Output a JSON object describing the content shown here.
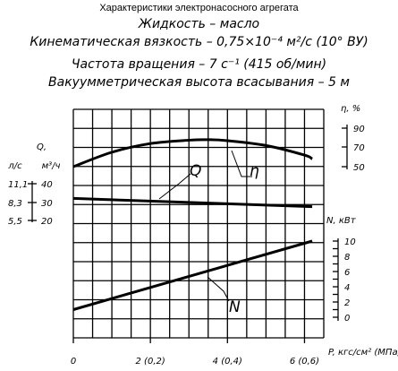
{
  "header": {
    "caption": "Характеристики электронасосного агрегата",
    "liquid": "Жидкость – масло",
    "viscosity": "Кинематическая вязкость – 0,75×10⁻⁴ м²/с (10° ВУ)",
    "speed": "Частота вращения – 7 с⁻¹ (415 об/мин)",
    "suction": "Вакуумметрическая высота всасывания – 5 м"
  },
  "chart_data": {
    "type": "line",
    "grid": true,
    "x_axis": {
      "label": "P, кгс/см² (МПа)",
      "range": [
        0,
        6.5
      ],
      "ticks": [
        {
          "value": 0,
          "label": "0"
        },
        {
          "value": 2,
          "label": "2 (0,2)"
        },
        {
          "value": 4,
          "label": "4 (0,4)"
        },
        {
          "value": 6,
          "label": "6 (0,6)"
        }
      ]
    },
    "y_axes": {
      "eta": {
        "label": "η, %",
        "ticks": [
          "90",
          "70",
          "50"
        ],
        "range": [
          50,
          90
        ]
      },
      "N": {
        "label": "N, кВт",
        "ticks": [
          "10",
          "8",
          "6",
          "4",
          "2",
          "0"
        ],
        "range": [
          0,
          10
        ]
      },
      "Q": {
        "label": "Q, м³/ч",
        "ticks": [
          "40",
          "30",
          "20"
        ],
        "range": [
          20,
          40
        ]
      },
      "Q_ls": {
        "label": "л/с",
        "ticks": [
          "11,1",
          "8,3",
          "5,5"
        ]
      }
    },
    "curve_labels": {
      "Q": "Q",
      "eta": "η",
      "N": "N"
    },
    "series": [
      {
        "key": "eta",
        "x": [
          0,
          1,
          2,
          3,
          3.5,
          4,
          5,
          6,
          6.2
        ],
        "values": [
          50,
          65,
          74,
          77.5,
          78,
          77,
          72,
          62,
          58
        ]
      },
      {
        "key": "Q",
        "x": [
          0,
          6.2
        ],
        "values": [
          32,
          27.5
        ]
      },
      {
        "key": "N",
        "x": [
          0,
          6.2
        ],
        "values": [
          1,
          10
        ]
      }
    ],
    "colors": {
      "line": "#000000",
      "grid": "#000000"
    }
  }
}
